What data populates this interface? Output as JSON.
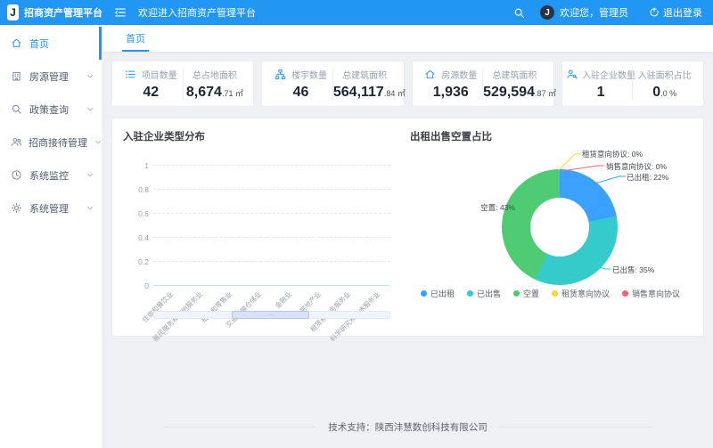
{
  "colors": {
    "accent": "#2196f3",
    "header_bg": "#2196f3",
    "content_bg": "#eef0f4"
  },
  "app": {
    "title": "招商资产管理平台",
    "logo_letter": "J",
    "welcome": "欢迎进入招商资产管理平台"
  },
  "header": {
    "greeting": "欢迎您，管理员",
    "logout_label": "退出登录",
    "avatar_letter": "J"
  },
  "sidebar": {
    "items": [
      {
        "id": "home",
        "label": "首页",
        "icon": "home-icon",
        "active": true,
        "has_children": false
      },
      {
        "id": "housing",
        "label": "房源管理",
        "icon": "building-icon",
        "active": false,
        "has_children": true
      },
      {
        "id": "policy",
        "label": "政策查询",
        "icon": "search-icon",
        "active": false,
        "has_children": true
      },
      {
        "id": "reception",
        "label": "招商接待管理",
        "icon": "users-icon",
        "active": false,
        "has_children": true
      },
      {
        "id": "monitor",
        "label": "系统监控",
        "icon": "monitor-icon",
        "active": false,
        "has_children": true
      },
      {
        "id": "system",
        "label": "系统管理",
        "icon": "gear-icon",
        "active": false,
        "has_children": true
      }
    ]
  },
  "tabs": [
    {
      "label": "首页",
      "active": true
    }
  ],
  "stat_cards": [
    {
      "icon": "list-icon",
      "primary_label": "项目数量",
      "primary_value": "42",
      "secondary_label": "总占地面积",
      "secondary_value": "8,674",
      "secondary_small": ".71 ㎡"
    },
    {
      "icon": "cluster-icon",
      "primary_label": "楼宇数量",
      "primary_value": "46",
      "secondary_label": "总建筑面积",
      "secondary_value": "564,117",
      "secondary_small": ".84 ㎡"
    },
    {
      "icon": "house-icon",
      "primary_label": "房源数量",
      "primary_value": "1,936",
      "secondary_label": "总建筑面积",
      "secondary_value": "529,594",
      "secondary_small": ".87 ㎡"
    },
    {
      "icon": "enterprise-icon",
      "primary_label": "入驻企业数量",
      "primary_value": "1",
      "secondary_label": "入驻面积占比",
      "secondary_value": "0",
      "secondary_small": ".0 %"
    }
  ],
  "chart_data": [
    {
      "type": "bar",
      "title": "入驻企业类型分布",
      "categories": [
        "住宿和餐饮业",
        "居民服务和其他服务业",
        "批发和零售业",
        "交通运输仓储业",
        "金融业",
        "房地产业",
        "租赁和商务服务业",
        "科学研究和技术服务业"
      ],
      "values": [
        0,
        0,
        0,
        0,
        0,
        0,
        0,
        0
      ],
      "xlabel": "",
      "ylabel": "",
      "ylim": [
        0,
        1
      ],
      "yticks": [
        "1",
        "0.8",
        "0.6",
        "0.4",
        "0.2",
        "0"
      ],
      "grid": "dashed-horizontal",
      "datazoom": {
        "start_pct": 33,
        "end_pct": 66
      }
    },
    {
      "type": "pie",
      "title": "出租出售空置占比",
      "legend_position": "bottom",
      "slices": [
        {
          "name": "已出租",
          "value": 22,
          "color": "#3ba1ff"
        },
        {
          "name": "已出售",
          "value": 35,
          "color": "#36cbcb"
        },
        {
          "name": "空置",
          "value": 43,
          "color": "#4ecb73"
        },
        {
          "name": "租赁意向协议",
          "value": 0,
          "color": "#fbd437"
        },
        {
          "name": "销售意向协议",
          "value": 0,
          "color": "#f2637b"
        }
      ]
    }
  ],
  "footer": {
    "text": "技术支持：陕西沣慧数创科技有限公司"
  }
}
